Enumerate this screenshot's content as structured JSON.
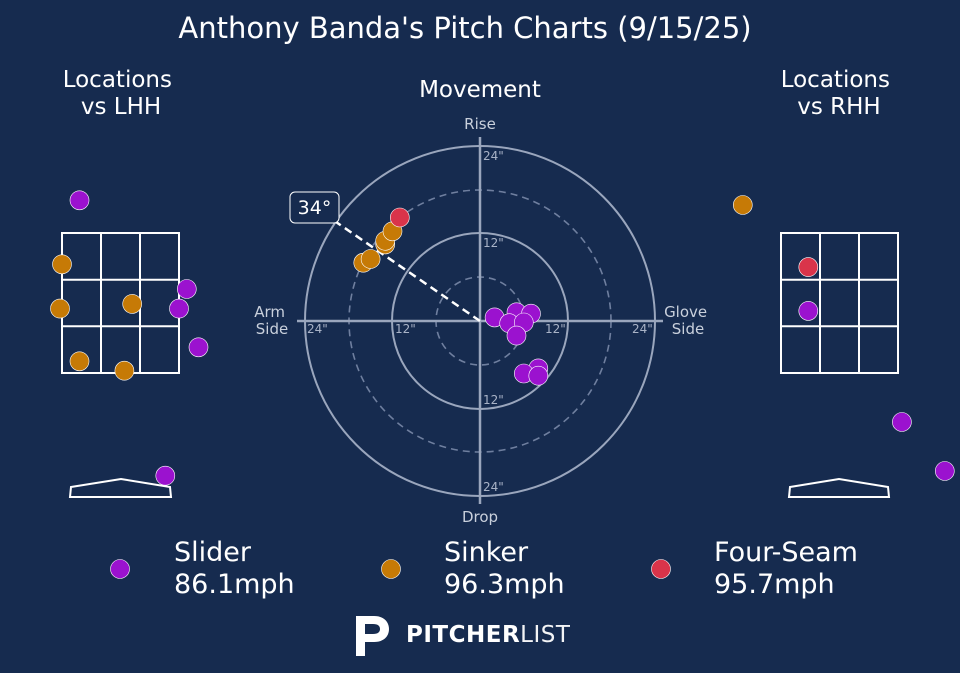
{
  "title": "Anthony Banda's Pitch Charts (9/15/25)",
  "colors": {
    "background": "#162b4f",
    "slider": "#9b12cf",
    "sinker": "#c67a06",
    "four_seam": "#d9344a",
    "grid": "#9aa6bd"
  },
  "panels": {
    "lhh_title": [
      "Locations",
      "vs LHH"
    ],
    "rhh_title": [
      "Locations",
      "vs RHH"
    ],
    "movement_title": "Movement"
  },
  "movement_axes": {
    "top": "Rise",
    "bottom": "Drop",
    "left": [
      "Arm",
      "Side"
    ],
    "right": [
      "Glove",
      "Side"
    ],
    "ring_labels": [
      "24\"",
      "12\"",
      "12\"",
      "24\""
    ]
  },
  "arm_angle_label": "34°",
  "legend": [
    {
      "name": "Slider",
      "speed": "86.1mph",
      "color": "#9b12cf"
    },
    {
      "name": "Sinker",
      "speed": "96.3mph",
      "color": "#c67a06"
    },
    {
      "name": "Four-Seam",
      "speed": "95.7mph",
      "color": "#d9344a"
    }
  ],
  "brand": {
    "bold": "PITCHER",
    "light": "LIST"
  },
  "chart_data": [
    {
      "type": "scatter",
      "title": "Locations vs LHH",
      "zone_units": "strike-zone cells (x: 0-3 left to right, y: 0-3 top to bottom)",
      "series": [
        {
          "name": "Slider",
          "points": [
            [
              0.45,
              -0.7
            ],
            [
              3.2,
              1.2
            ],
            [
              3.0,
              1.62
            ],
            [
              3.5,
              2.45
            ],
            [
              2.65,
              5.2
            ]
          ]
        },
        {
          "name": "Sinker",
          "points": [
            [
              0.0,
              0.67
            ],
            [
              -0.05,
              1.62
            ],
            [
              1.8,
              1.52
            ],
            [
              0.45,
              2.75
            ],
            [
              1.6,
              2.95
            ]
          ]
        }
      ]
    },
    {
      "type": "scatter",
      "title": "Movement",
      "xlabel": "Arm Side / Glove Side (inches)",
      "ylabel": "Drop / Rise (inches)",
      "xlim": [
        -24,
        24
      ],
      "ylim": [
        -24,
        24
      ],
      "series": [
        {
          "name": "Slider",
          "points": [
            [
              2,
              0.5
            ],
            [
              5,
              1.2
            ],
            [
              7,
              1
            ],
            [
              4,
              -0.3
            ],
            [
              6,
              -0.2
            ],
            [
              5,
              -2
            ],
            [
              8,
              -6.5
            ],
            [
              6,
              -7.2
            ],
            [
              8,
              -7.5
            ]
          ]
        },
        {
          "name": "Sinker",
          "points": [
            [
              -16,
              8
            ],
            [
              -15,
              8.5
            ],
            [
              -13,
              10.5
            ],
            [
              -13,
              11
            ],
            [
              -12,
              12.3
            ]
          ]
        },
        {
          "name": "Four-Seam",
          "points": [
            [
              -11,
              14.2
            ]
          ]
        }
      ],
      "arm_angle_deg": 34
    },
    {
      "type": "scatter",
      "title": "Locations vs RHH",
      "zone_units": "strike-zone cells (x: 0-3 left to right, y: 0-3 top to bottom)",
      "series": [
        {
          "name": "Slider",
          "points": [
            [
              0.7,
              1.67
            ],
            [
              3.1,
              4.05
            ],
            [
              4.2,
              5.1
            ]
          ]
        },
        {
          "name": "Sinker",
          "points": [
            [
              -0.98,
              -0.6
            ]
          ]
        },
        {
          "name": "Four-Seam",
          "points": [
            [
              0.7,
              0.73
            ]
          ]
        }
      ]
    }
  ]
}
